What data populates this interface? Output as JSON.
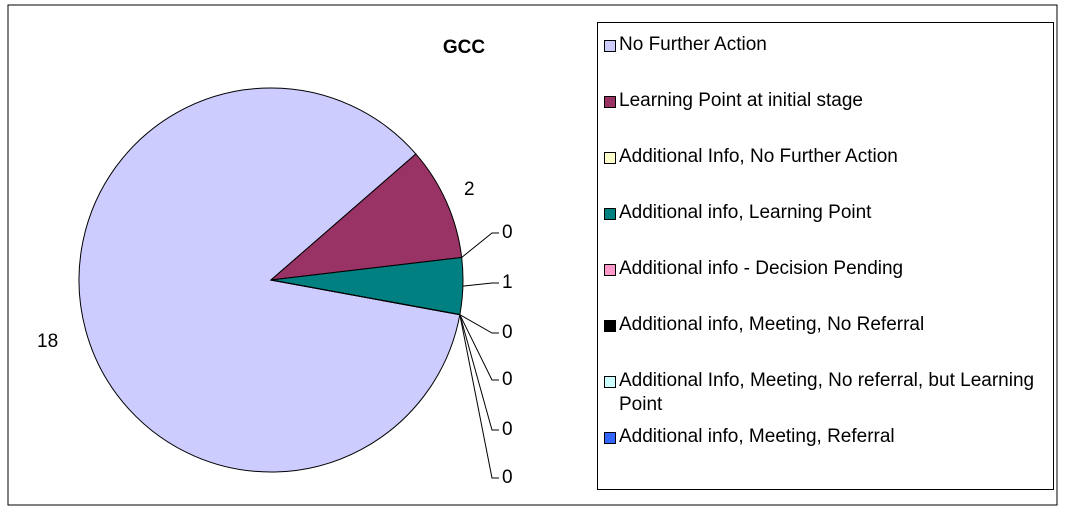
{
  "chart_data": {
    "type": "pie",
    "title": "GCC",
    "categories": [
      "No Further Action",
      "Learning Point at initial stage",
      "Additional Info, No Further Action",
      "Additional info, Learning Point",
      "Additional info - Decision Pending",
      "Additional info, Meeting, No Referral",
      "Additional Info, Meeting, No referral, but Learning Point",
      "Additional info, Meeting, Referral"
    ],
    "values": [
      18,
      2,
      0,
      1,
      0,
      0,
      0,
      0
    ],
    "colors": [
      "#ccccff",
      "#993366",
      "#ffffcc",
      "#008080",
      "#ff99cc",
      "#000000",
      "#ccffff",
      "#3366ff"
    ],
    "legend": "right"
  }
}
